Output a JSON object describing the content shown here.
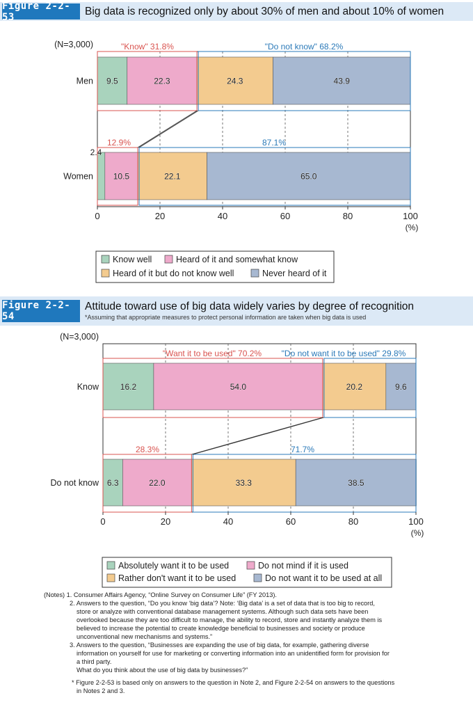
{
  "fig1": {
    "label": "Figure 2-2-53",
    "title": "Big data is recognized only by about 30% of men and about 10% of women",
    "n_label": "(N=3,000)",
    "unit": "(%)",
    "group_top": {
      "men": "\"Know\" 31.8%",
      "men_right": "\"Do not know\" 68.2%",
      "women": "12.9%",
      "women_right": "87.1%"
    },
    "legend": [
      "Know well",
      "Heard of it and somewhat know",
      "Heard of it but do not know well",
      "Never heard of it"
    ]
  },
  "fig2": {
    "label": "Figure 2-2-54",
    "title": "Attitude toward use of big data widely varies by degree of recognition",
    "subtitle": "*Assuming that appropriate measures to protect personal information are taken when big data is used",
    "n_label": "(N=3,000)",
    "unit": "(%)",
    "group_top": {
      "know": "\"Want it to be used\" 70.2%",
      "know_right": "\"Do not want it to be used\" 29.8%",
      "dnk": "28.3%",
      "dnk_right": "71.7%"
    },
    "legend": [
      "Absolutely want it to be used",
      "Do not mind if it is used",
      "Rather don't want it to be used",
      "Do not want it to be used at all"
    ]
  },
  "colors": {
    "c1": "#a9d3bd",
    "c2": "#eeaacb",
    "c3": "#f3cb8f",
    "c4": "#a7b8d1",
    "red": "#d9534f",
    "blue": "#2a79b8",
    "header": "#dce9f6",
    "label_bg": "#1f78bd"
  },
  "chart_data": [
    {
      "type": "bar",
      "orientation": "horizontal-stacked",
      "title": "Big data is recognized only by about 30% of men and about 10% of women",
      "categories": [
        "Men",
        "Women"
      ],
      "series": [
        {
          "name": "Know well",
          "values": [
            9.5,
            2.4
          ]
        },
        {
          "name": "Heard of it and somewhat know",
          "values": [
            22.3,
            10.5
          ]
        },
        {
          "name": "Heard of it but do not know well",
          "values": [
            24.3,
            22.1
          ]
        },
        {
          "name": "Never heard of it",
          "values": [
            43.9,
            65.0
          ]
        }
      ],
      "xlim": [
        0,
        100
      ],
      "xticks": [
        0,
        20,
        40,
        60,
        80,
        100
      ],
      "grid": true,
      "legend_position": "bottom"
    },
    {
      "type": "bar",
      "orientation": "horizontal-stacked",
      "title": "Attitude toward use of big data widely varies by degree of recognition",
      "categories": [
        "Know",
        "Do not know"
      ],
      "series": [
        {
          "name": "Absolutely want it to be used",
          "values": [
            16.2,
            6.3
          ]
        },
        {
          "name": "Do not mind if it is used",
          "values": [
            54.0,
            22.0
          ]
        },
        {
          "name": "Rather don't want it to be used",
          "values": [
            20.2,
            33.3
          ]
        },
        {
          "name": "Do not want it to be used at all",
          "values": [
            9.6,
            38.5
          ]
        }
      ],
      "xlim": [
        0,
        100
      ],
      "xticks": [
        0,
        20,
        40,
        60,
        80,
        100
      ],
      "grid": true,
      "legend_position": "bottom"
    }
  ],
  "notes": [
    "(Notes) 1. Consumer Affairs Agency, “Online Survey on Consumer Life” (FY 2013).",
    "2. Answers to the question, “Do you know ‘big data’? Note: ‘Big data’ is a set of data that is too big to record,",
    "store or analyze with conventional database management systems. Although such data sets have been",
    "overlooked because they are too difficult to manage, the ability to record, store and instantly analyze them is",
    "believed to increase the potential to create knowledge beneficial to businesses and society or produce",
    "unconventional new mechanisms and systems.”",
    "3. Answers to the question, “Businesses are expanding the use of big data, for example, gathering diverse",
    "information on yourself for use for marketing or converting information into an unidentified form for provision for",
    "a third party.",
    "What do you think about the use of big data by businesses?”",
    "* Figure 2-2-53 is based only on answers to the question in Note 2, and Figure 2-2-54 on answers to the questions",
    "in Notes 2 and 3."
  ]
}
